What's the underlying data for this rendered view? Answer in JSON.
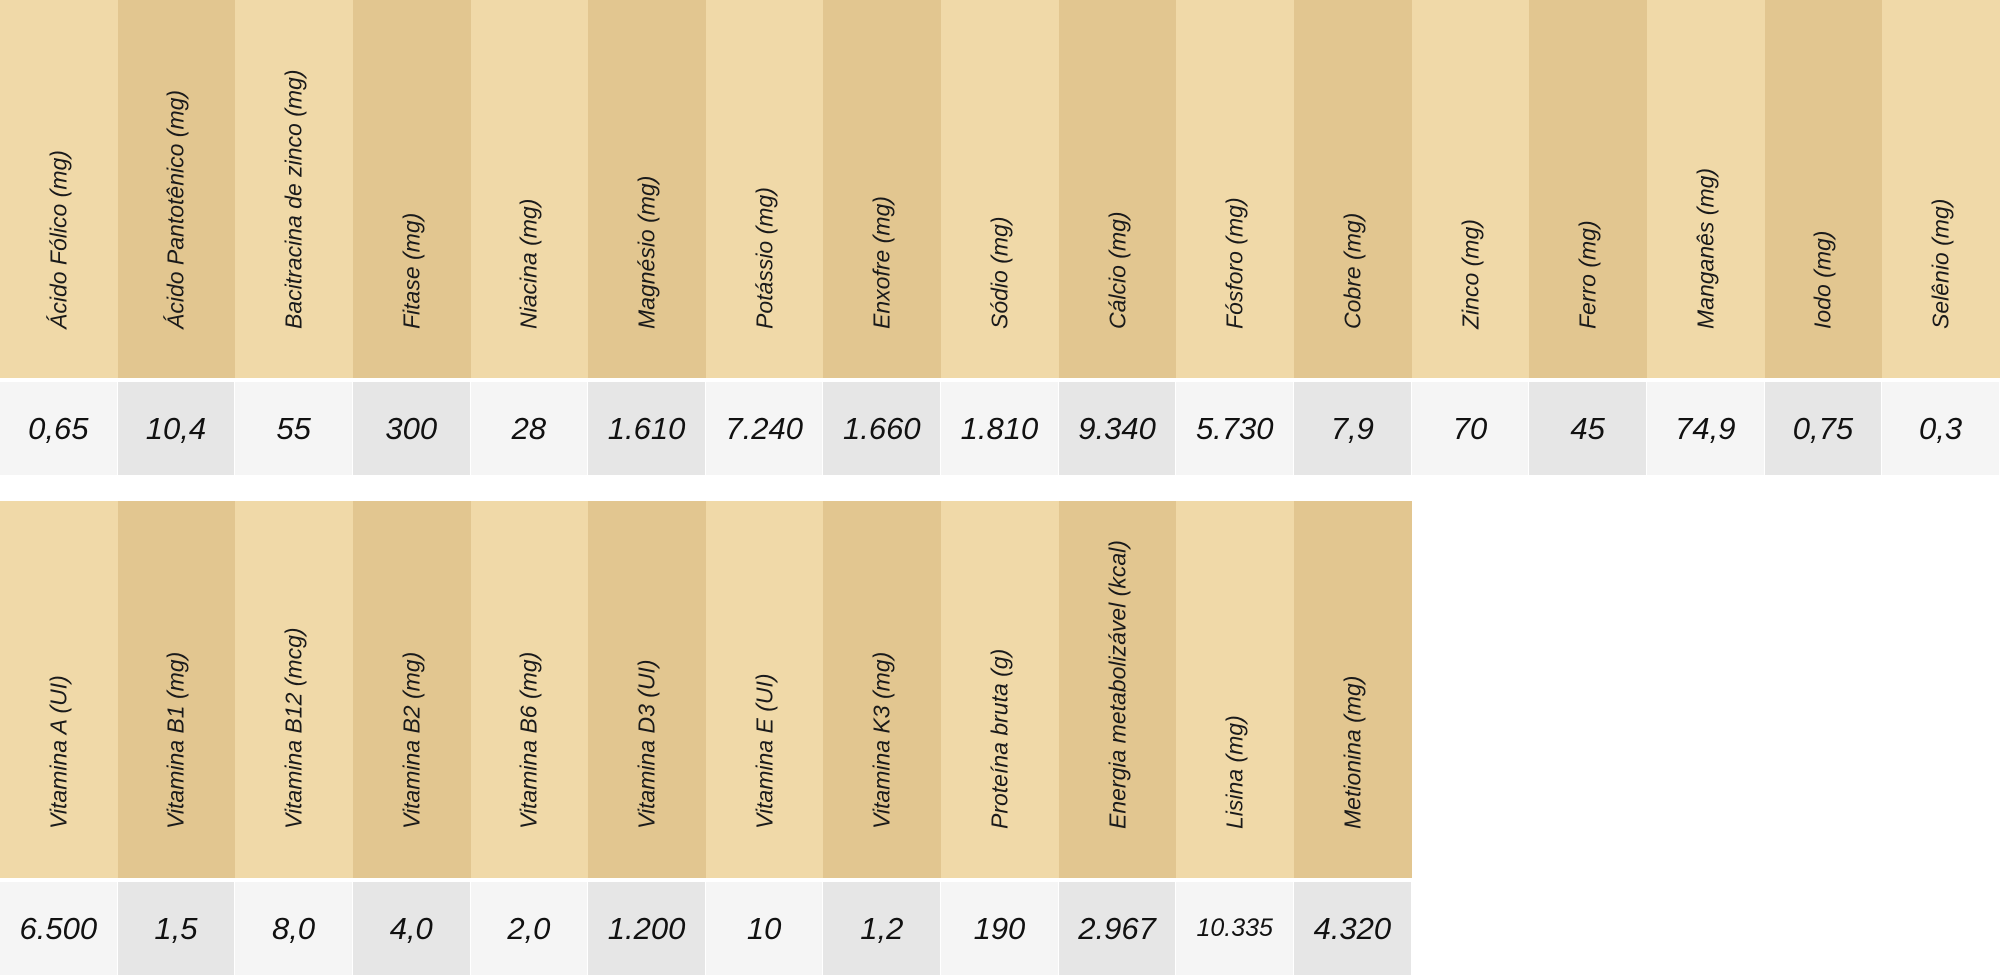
{
  "table1": {
    "columns": [
      {
        "header": "Ácido Fólico (mg)",
        "value": "0,65"
      },
      {
        "header": "Ácido Pantotênico  (mg)",
        "value": "10,4"
      },
      {
        "header": "Bacitracina de zinco  (mg)",
        "value": "55"
      },
      {
        "header": "Fitase  (mg)",
        "value": "300"
      },
      {
        "header": "Niacina  (mg)",
        "value": "28"
      },
      {
        "header": "Magnésio  (mg)",
        "value": "1.610"
      },
      {
        "header": "Potássio  (mg)",
        "value": "7.240"
      },
      {
        "header": "Enxofre  (mg)",
        "value": "1.660"
      },
      {
        "header": "Sódio  (mg)",
        "value": "1.810"
      },
      {
        "header": "Cálcio  (mg)",
        "value": "9.340"
      },
      {
        "header": "Fósforo (mg)",
        "value": "5.730"
      },
      {
        "header": "Cobre (mg)",
        "value": "7,9"
      },
      {
        "header": "Zinco (mg)",
        "value": "70"
      },
      {
        "header": "Ferro (mg)",
        "value": "45"
      },
      {
        "header": "Manganês (mg)",
        "value": "74,9"
      },
      {
        "header": "Iodo (mg)",
        "value": "0,75"
      },
      {
        "header": "Selênio (mg)",
        "value": "0,3"
      }
    ]
  },
  "table2": {
    "columns": [
      {
        "header": "Vitamina A (UI)",
        "value": "6.500"
      },
      {
        "header": "Vitamina B1 (mg)",
        "value": "1,5"
      },
      {
        "header": "Vitamina B12 (mcg)",
        "value": "8,0"
      },
      {
        "header": "Vitamina B2 (mg)",
        "value": "4,0"
      },
      {
        "header": "Vitamina B6 (mg)",
        "value": "2,0"
      },
      {
        "header": "Vitamina D3 (UI)",
        "value": "1.200"
      },
      {
        "header": "Vitamina E (UI)",
        "value": "10"
      },
      {
        "header": "Vitamina K3 (mg)",
        "value": "1,2"
      },
      {
        "header": "Proteína bruta (g)",
        "value": "190"
      },
      {
        "header": "Energia metabolizável (kcal)",
        "value": "2.967"
      },
      {
        "header": "Lisina (mg)",
        "value": "10.335"
      },
      {
        "header": "Metionina (mg)",
        "value": "4.320"
      }
    ]
  },
  "colors": {
    "header_light": "#f0d9a8",
    "header_dark": "#e2c690",
    "value_light": "#f5f5f5",
    "value_dark": "#e6e6e6"
  }
}
